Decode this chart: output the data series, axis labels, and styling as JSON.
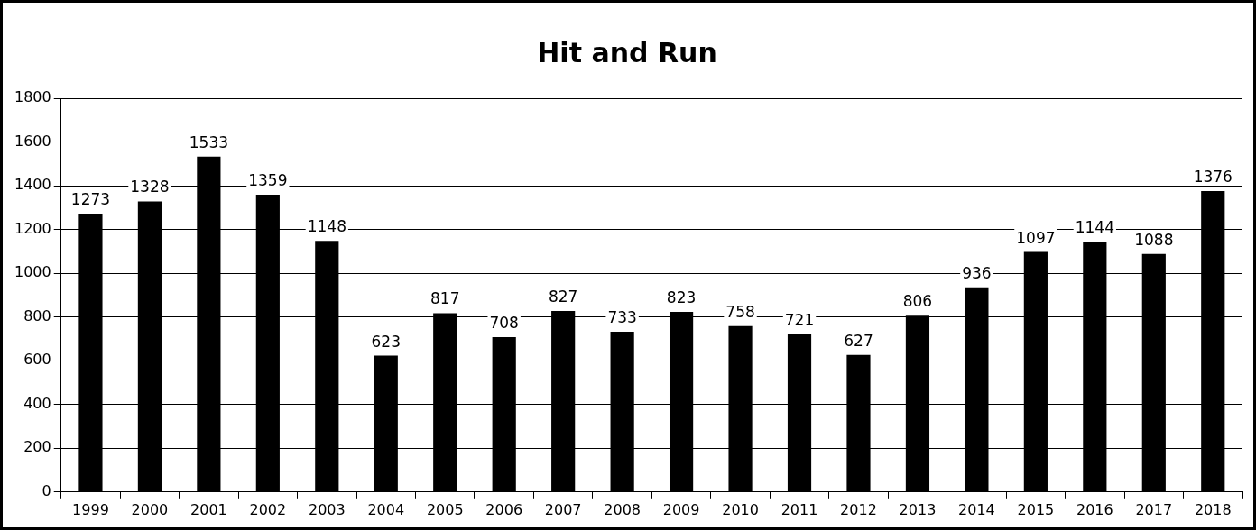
{
  "chart_data": {
    "type": "bar",
    "title": "Hit and Run",
    "categories": [
      "1999",
      "2000",
      "2001",
      "2002",
      "2003",
      "2004",
      "2005",
      "2006",
      "2007",
      "2008",
      "2009",
      "2010",
      "2011",
      "2012",
      "2013",
      "2014",
      "2015",
      "2016",
      "2017",
      "2018"
    ],
    "values": [
      1273,
      1328,
      1533,
      1359,
      1148,
      623,
      817,
      708,
      827,
      733,
      823,
      758,
      721,
      627,
      806,
      936,
      1097,
      1144,
      1088,
      1376
    ],
    "color": "#000000",
    "ylim": [
      0,
      1800
    ],
    "yticks": [
      0,
      200,
      400,
      600,
      800,
      1000,
      1200,
      1400,
      1600,
      1800
    ],
    "grid": "y",
    "legend": false,
    "data_labels": true
  }
}
